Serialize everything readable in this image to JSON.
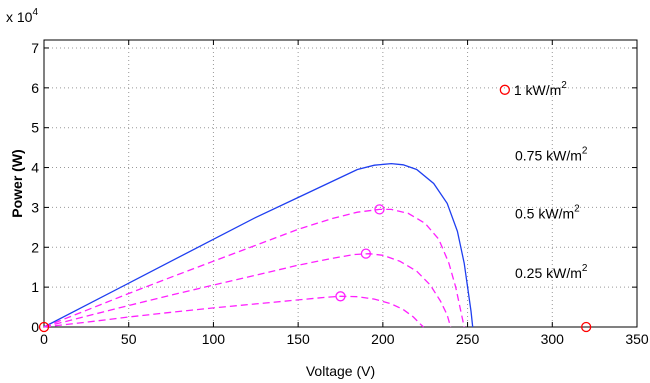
{
  "chart_data": {
    "type": "line",
    "xlabel": "Voltage (V)",
    "ylabel": "Power (W)",
    "y_multiplier_label": "x 10",
    "y_multiplier_exp": "4",
    "xlim": [
      0,
      350
    ],
    "ylim": [
      0,
      7.2
    ],
    "x_ticks": [
      0,
      50,
      100,
      150,
      200,
      250,
      300,
      350
    ],
    "y_ticks": [
      0,
      1,
      2,
      3,
      4,
      5,
      6,
      7
    ],
    "grid": true,
    "series": [
      {
        "style": "solid",
        "color": "#1f3ff0",
        "points": [
          [
            0,
            0
          ],
          [
            25,
            0.55
          ],
          [
            50,
            1.1
          ],
          [
            75,
            1.65
          ],
          [
            100,
            2.2
          ],
          [
            125,
            2.75
          ],
          [
            150,
            3.25
          ],
          [
            170,
            3.65
          ],
          [
            185,
            3.95
          ],
          [
            195,
            4.06
          ],
          [
            205,
            4.1
          ],
          [
            212,
            4.07
          ],
          [
            220,
            3.95
          ],
          [
            230,
            3.6
          ],
          [
            238,
            3.1
          ],
          [
            244,
            2.4
          ],
          [
            248,
            1.6
          ],
          [
            250,
            1.0
          ],
          [
            252,
            0.4
          ],
          [
            253,
            0
          ]
        ],
        "mpp": null
      },
      {
        "style": "dashed",
        "color": "#ff20ff",
        "points": [
          [
            0,
            0
          ],
          [
            25,
            0.42
          ],
          [
            50,
            0.84
          ],
          [
            75,
            1.25
          ],
          [
            100,
            1.65
          ],
          [
            125,
            2.05
          ],
          [
            150,
            2.45
          ],
          [
            170,
            2.72
          ],
          [
            185,
            2.88
          ],
          [
            198,
            2.95
          ],
          [
            205,
            2.95
          ],
          [
            215,
            2.85
          ],
          [
            225,
            2.6
          ],
          [
            233,
            2.2
          ],
          [
            239,
            1.6
          ],
          [
            243,
            1.0
          ],
          [
            246,
            0.4
          ],
          [
            248,
            0
          ]
        ],
        "mpp": [
          198,
          2.95
        ]
      },
      {
        "style": "dashed",
        "color": "#ff20ff",
        "points": [
          [
            0,
            0
          ],
          [
            25,
            0.27
          ],
          [
            50,
            0.54
          ],
          [
            75,
            0.8
          ],
          [
            100,
            1.05
          ],
          [
            125,
            1.3
          ],
          [
            150,
            1.55
          ],
          [
            170,
            1.72
          ],
          [
            183,
            1.82
          ],
          [
            192,
            1.84
          ],
          [
            200,
            1.8
          ],
          [
            210,
            1.65
          ],
          [
            220,
            1.4
          ],
          [
            228,
            1.05
          ],
          [
            234,
            0.65
          ],
          [
            238,
            0.3
          ],
          [
            240,
            0
          ]
        ],
        "mpp": [
          190,
          1.84
        ]
      },
      {
        "style": "dashed",
        "color": "#ff20ff",
        "points": [
          [
            0,
            0
          ],
          [
            25,
            0.12
          ],
          [
            50,
            0.25
          ],
          [
            75,
            0.37
          ],
          [
            100,
            0.48
          ],
          [
            125,
            0.58
          ],
          [
            150,
            0.68
          ],
          [
            165,
            0.74
          ],
          [
            175,
            0.77
          ],
          [
            185,
            0.76
          ],
          [
            195,
            0.7
          ],
          [
            205,
            0.58
          ],
          [
            212,
            0.44
          ],
          [
            218,
            0.25
          ],
          [
            222,
            0.08
          ],
          [
            224,
            0
          ]
        ],
        "mpp": [
          175,
          0.77
        ]
      }
    ],
    "markers": [
      {
        "x": 0,
        "y": 0,
        "color": "#ff0000"
      },
      {
        "x": 320,
        "y": 0,
        "color": "#ff0000"
      }
    ],
    "annotations": [
      {
        "text": "1 kW/m",
        "sup": "2",
        "x": 272,
        "y": 5.95,
        "marker": true,
        "marker_color": "#ff0000"
      },
      {
        "text": "0.75 kW/m",
        "sup": "2",
        "x": 278,
        "y": 4.3,
        "marker": false
      },
      {
        "text": "0.5 kW/m",
        "sup": "2",
        "x": 278,
        "y": 2.85,
        "marker": false
      },
      {
        "text": "0.25 kW/m",
        "sup": "2",
        "x": 278,
        "y": 1.35,
        "marker": false
      }
    ]
  }
}
